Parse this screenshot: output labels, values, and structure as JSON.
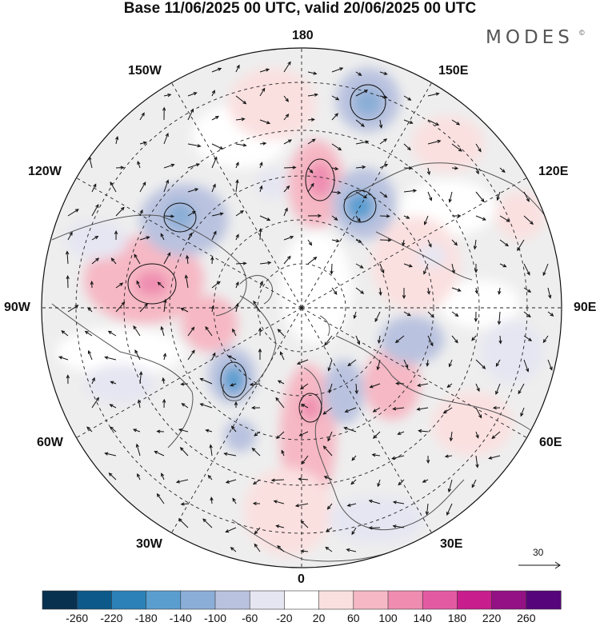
{
  "title": "Base 11/06/2025 00 UTC, valid 20/06/2025 00 UTC",
  "brand": "MODES",
  "brand_mark": "©",
  "longitude_labels": {
    "top": "180",
    "top_left": "150W",
    "top_right": "150E",
    "upper_left": "120W",
    "upper_right": "120E",
    "left": "90W",
    "right": "90E",
    "lower_left": "60W",
    "lower_right": "60E",
    "bottom_left": "30W",
    "bottom_right": "30E",
    "bottom": "0"
  },
  "reference_vector": {
    "value": "30"
  },
  "colorbar": {
    "colors": [
      "#08304f",
      "#0d5a8a",
      "#2c82b8",
      "#5a9ed0",
      "#8aaed7",
      "#b9c2df",
      "#e6e6f2",
      "#ffffff",
      "#fbe0e0",
      "#f6b8c4",
      "#ef8cb0",
      "#e45aa2",
      "#c81d8c",
      "#931085",
      "#56067a"
    ],
    "labels": [
      "-260",
      "-220",
      "-180",
      "-140",
      "-100",
      "-60",
      "-20",
      "20",
      "60",
      "100",
      "140",
      "180",
      "220",
      "260"
    ]
  },
  "map_colors": {
    "background_gray": "#eeeeee",
    "neutral": "#ffffff",
    "positive_light": "#fbe0e0",
    "positive_mid": "#f6b8c4",
    "positive_strong": "#ef8cb0",
    "positive_peak": "#e45aa2",
    "negative_light": "#e6e6f2",
    "negative_mid": "#b9c2df",
    "negative_strong": "#8aaed7",
    "negative_peak": "#5a9ed0",
    "coast": "#555555",
    "grid": "#222222"
  }
}
